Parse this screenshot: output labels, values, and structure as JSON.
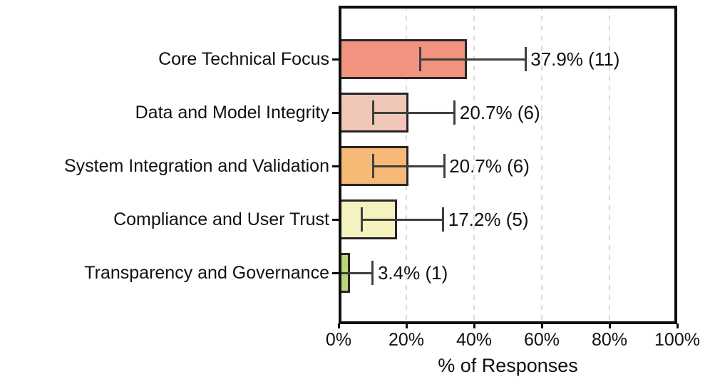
{
  "chart_data": {
    "type": "bar",
    "orientation": "horizontal",
    "title": "",
    "xlabel": "% of Responses",
    "ylabel": "",
    "xlim": [
      0,
      100
    ],
    "xticks": [
      0,
      20,
      40,
      60,
      80,
      100
    ],
    "xtick_labels": [
      "0%",
      "20%",
      "40%",
      "60%",
      "80%",
      "100%"
    ],
    "grid": "vertical dashed gridlines at 20/40/60/80, legend none",
    "categories": [
      "Core Technical Focus",
      "Data and Model Integrity",
      "System Integration and Validation",
      "Compliance and User Trust",
      "Transparency and Governance"
    ],
    "values": [
      37.9,
      20.7,
      20.7,
      17.2,
      3.4
    ],
    "counts": [
      11,
      6,
      6,
      5,
      1
    ],
    "annotations": [
      "37.9% (11)",
      "20.7% (6)",
      "20.7% (6)",
      "17.2% (5)",
      "3.4% (1)"
    ],
    "error_low": [
      24.2,
      10.3,
      10.3,
      6.9,
      0.6
    ],
    "error_high": [
      55.2,
      34.3,
      31.2,
      30.9,
      10.1
    ],
    "bar_colors": [
      "#F2937F",
      "#F0C6B7",
      "#F7BA76",
      "#F6F2C0",
      "#B8D678"
    ],
    "bar_edge_color": "#262626",
    "error_bar_color": "#3F3F3F",
    "gridline_color": "#DBDBDB",
    "axis_border_color": "#0F0F0F",
    "text_color": "#111111",
    "background_color": "#FFFFFF"
  }
}
